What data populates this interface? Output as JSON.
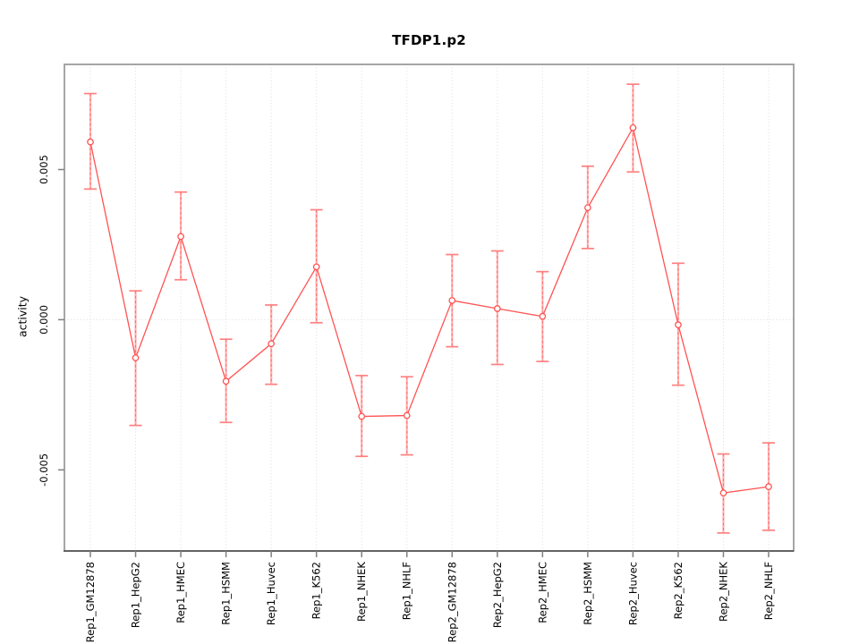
{
  "chart_data": {
    "type": "line",
    "title": "TFDP1.p2",
    "ylabel": "activity",
    "categories": [
      "Rep1_GM12878",
      "Rep1_HepG2",
      "Rep1_HMEC",
      "Rep1_HSMM",
      "Rep1_Huvec",
      "Rep1_K562",
      "Rep1_NHEK",
      "Rep1_NHLF",
      "Rep2_GM12878",
      "Rep2_HepG2",
      "Rep2_HMEC",
      "Rep2_HSMM",
      "Rep2_Huvec",
      "Rep2_K562",
      "Rep2_NHEK",
      "Rep2_NHLF"
    ],
    "series": [
      {
        "name": "activity",
        "values": [
          0.00592,
          -0.00127,
          0.00277,
          -0.00205,
          -0.0008,
          0.00176,
          -0.00322,
          -0.00319,
          0.00064,
          0.00037,
          0.00011,
          0.00373,
          0.00639,
          -0.00017,
          -0.00577,
          -0.00556
        ],
        "lower": [
          0.00435,
          -0.00352,
          0.00133,
          -0.00342,
          -0.00215,
          -0.0001,
          -0.00455,
          -0.0045,
          -0.0009,
          -0.00149,
          -0.00139,
          0.00237,
          0.00492,
          -0.00218,
          -0.0071,
          -0.00701
        ],
        "upper": [
          0.00753,
          0.00096,
          0.00425,
          -0.00065,
          0.00049,
          0.00366,
          -0.00186,
          -0.0019,
          0.00217,
          0.00229,
          0.0016,
          0.00511,
          0.00784,
          0.00188,
          -0.00447,
          -0.0041
        ]
      }
    ],
    "error_bars": true,
    "point_style": "open-circle",
    "ylim": [
      -0.0077,
      0.0085
    ],
    "yticks": [
      -0.005,
      0,
      0.005
    ],
    "ytick_labels": [
      "-0.005",
      "0.000",
      "0.005"
    ],
    "grid": {
      "vertical_at_categories": true,
      "horizontal_at_zero": true
    },
    "legend": "none",
    "colors": {
      "line": "#ff5252",
      "point": "#ff5252",
      "error_bar": "#ffb3b3",
      "error_bar_dash": "#ff6b6b",
      "error_cap": "#ff8080",
      "grid": "#dcdcdc",
      "frame": "#9c9c9c",
      "axis": "#4a4a4a",
      "tick": "#808080",
      "text": "#000000"
    }
  }
}
